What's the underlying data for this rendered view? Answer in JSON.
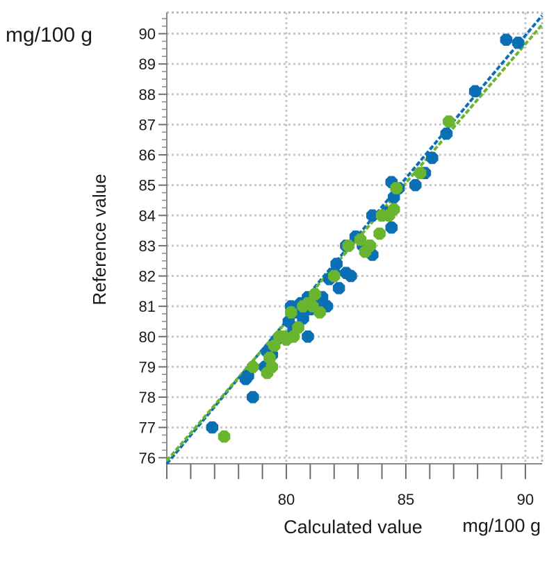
{
  "chart_data": {
    "type": "scatter",
    "title": "",
    "xlabel": "Calculated value",
    "xunit": "mg/100 g",
    "ylabel": "Reference value",
    "yunit": "mg/100 g",
    "xlim": [
      75.0,
      90.7
    ],
    "ylim": [
      75.8,
      90.7
    ],
    "x_ticks": [
      80,
      85,
      90
    ],
    "x_tick_labels": [
      "80",
      "85",
      "90"
    ],
    "y_ticks": [
      76,
      77,
      78,
      79,
      80,
      81,
      82,
      83,
      84,
      85,
      86,
      87,
      88,
      89,
      90
    ],
    "y_tick_labels": [
      "76",
      "77",
      "78",
      "79",
      "80",
      "81",
      "82",
      "83",
      "84",
      "85",
      "86",
      "87",
      "88",
      "89",
      "90"
    ],
    "grid": true,
    "legend": "none",
    "colors": {
      "series_blue": "#0a6fb4",
      "series_green": "#6ab52e"
    },
    "series": [
      {
        "color": "#0a6fb4",
        "trendline": {
          "x": [
            75.0,
            90.7
          ],
          "y": [
            75.8,
            90.6
          ]
        },
        "points": [
          [
            76.9,
            77.0
          ],
          [
            78.3,
            78.6
          ],
          [
            78.4,
            78.7
          ],
          [
            78.6,
            78.0
          ],
          [
            79.1,
            79.0
          ],
          [
            79.2,
            79.5
          ],
          [
            79.4,
            79.4
          ],
          [
            79.6,
            79.9
          ],
          [
            80.0,
            80.0
          ],
          [
            80.1,
            80.5
          ],
          [
            80.2,
            81.0
          ],
          [
            80.3,
            80.3
          ],
          [
            80.4,
            80.8
          ],
          [
            80.6,
            81.1
          ],
          [
            80.7,
            80.6
          ],
          [
            80.9,
            80.0
          ],
          [
            80.9,
            81.3
          ],
          [
            81.0,
            80.9
          ],
          [
            81.2,
            81.1
          ],
          [
            81.5,
            81.3
          ],
          [
            81.7,
            81.0
          ],
          [
            81.8,
            81.9
          ],
          [
            82.0,
            82.1
          ],
          [
            82.1,
            82.4
          ],
          [
            82.2,
            81.6
          ],
          [
            82.5,
            82.1
          ],
          [
            82.7,
            82.0
          ],
          [
            82.5,
            83.0
          ],
          [
            82.9,
            83.3
          ],
          [
            83.2,
            83.0
          ],
          [
            83.5,
            83.0
          ],
          [
            83.6,
            82.7
          ],
          [
            83.6,
            84.0
          ],
          [
            84.0,
            84.0
          ],
          [
            84.2,
            84.1
          ],
          [
            84.4,
            83.6
          ],
          [
            84.4,
            85.1
          ],
          [
            84.7,
            84.9
          ],
          [
            84.5,
            84.6
          ],
          [
            85.4,
            85.0
          ],
          [
            85.8,
            85.4
          ],
          [
            86.1,
            85.9
          ],
          [
            86.7,
            86.7
          ],
          [
            87.9,
            88.1
          ],
          [
            89.2,
            89.8
          ],
          [
            89.7,
            89.7
          ]
        ]
      },
      {
        "color": "#6ab52e",
        "trendline": {
          "x": [
            75.0,
            90.7
          ],
          "y": [
            75.9,
            90.3
          ]
        },
        "points": [
          [
            77.4,
            76.7
          ],
          [
            78.6,
            79.0
          ],
          [
            79.2,
            78.8
          ],
          [
            79.3,
            79.3
          ],
          [
            79.4,
            79.0
          ],
          [
            79.5,
            79.7
          ],
          [
            79.7,
            80.0
          ],
          [
            79.9,
            80.0
          ],
          [
            80.0,
            79.9
          ],
          [
            80.2,
            80.8
          ],
          [
            80.3,
            80.0
          ],
          [
            80.5,
            80.3
          ],
          [
            80.7,
            81.0
          ],
          [
            80.9,
            81.1
          ],
          [
            81.1,
            81.0
          ],
          [
            81.2,
            81.4
          ],
          [
            81.4,
            80.8
          ],
          [
            82.0,
            82.0
          ],
          [
            82.6,
            83.0
          ],
          [
            83.1,
            83.2
          ],
          [
            83.3,
            82.8
          ],
          [
            83.5,
            83.0
          ],
          [
            83.9,
            83.4
          ],
          [
            84.0,
            84.0
          ],
          [
            84.3,
            84.0
          ],
          [
            84.5,
            84.2
          ],
          [
            84.6,
            84.9
          ],
          [
            85.6,
            85.4
          ],
          [
            86.8,
            87.1
          ]
        ]
      }
    ]
  }
}
